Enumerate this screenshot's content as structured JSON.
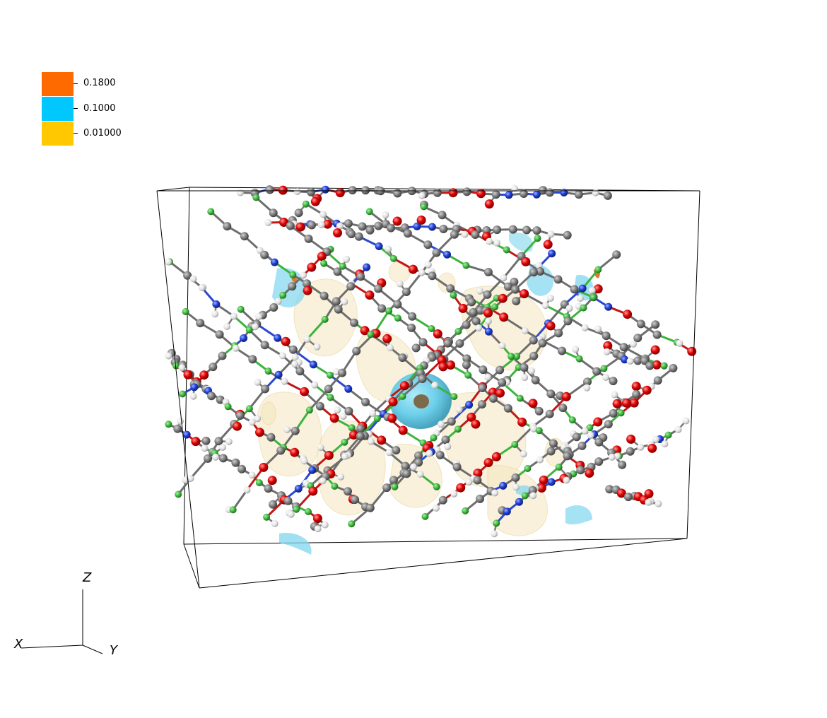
{
  "legend": {
    "entries": [
      {
        "label": "0.1800",
        "color": "#ff6a00"
      },
      {
        "label": "0.1000",
        "color": "#00c8ff"
      },
      {
        "label": "0.01000",
        "color": "#ffc800"
      }
    ]
  },
  "axes": {
    "x_label": "X",
    "y_label": "Y",
    "z_label": "Z"
  },
  "scene": {
    "atom_colors": {
      "carbon": "#7a7a7a",
      "oxygen": "#e00000",
      "nitrogen": "#1f3fd6",
      "hydrogen": "#e8e8e8",
      "metal": "#3cb43c"
    },
    "isosurface_colors": {
      "low": "#f4e6bd",
      "mid": "#6fd2ee",
      "high": "#e07a2a"
    }
  }
}
